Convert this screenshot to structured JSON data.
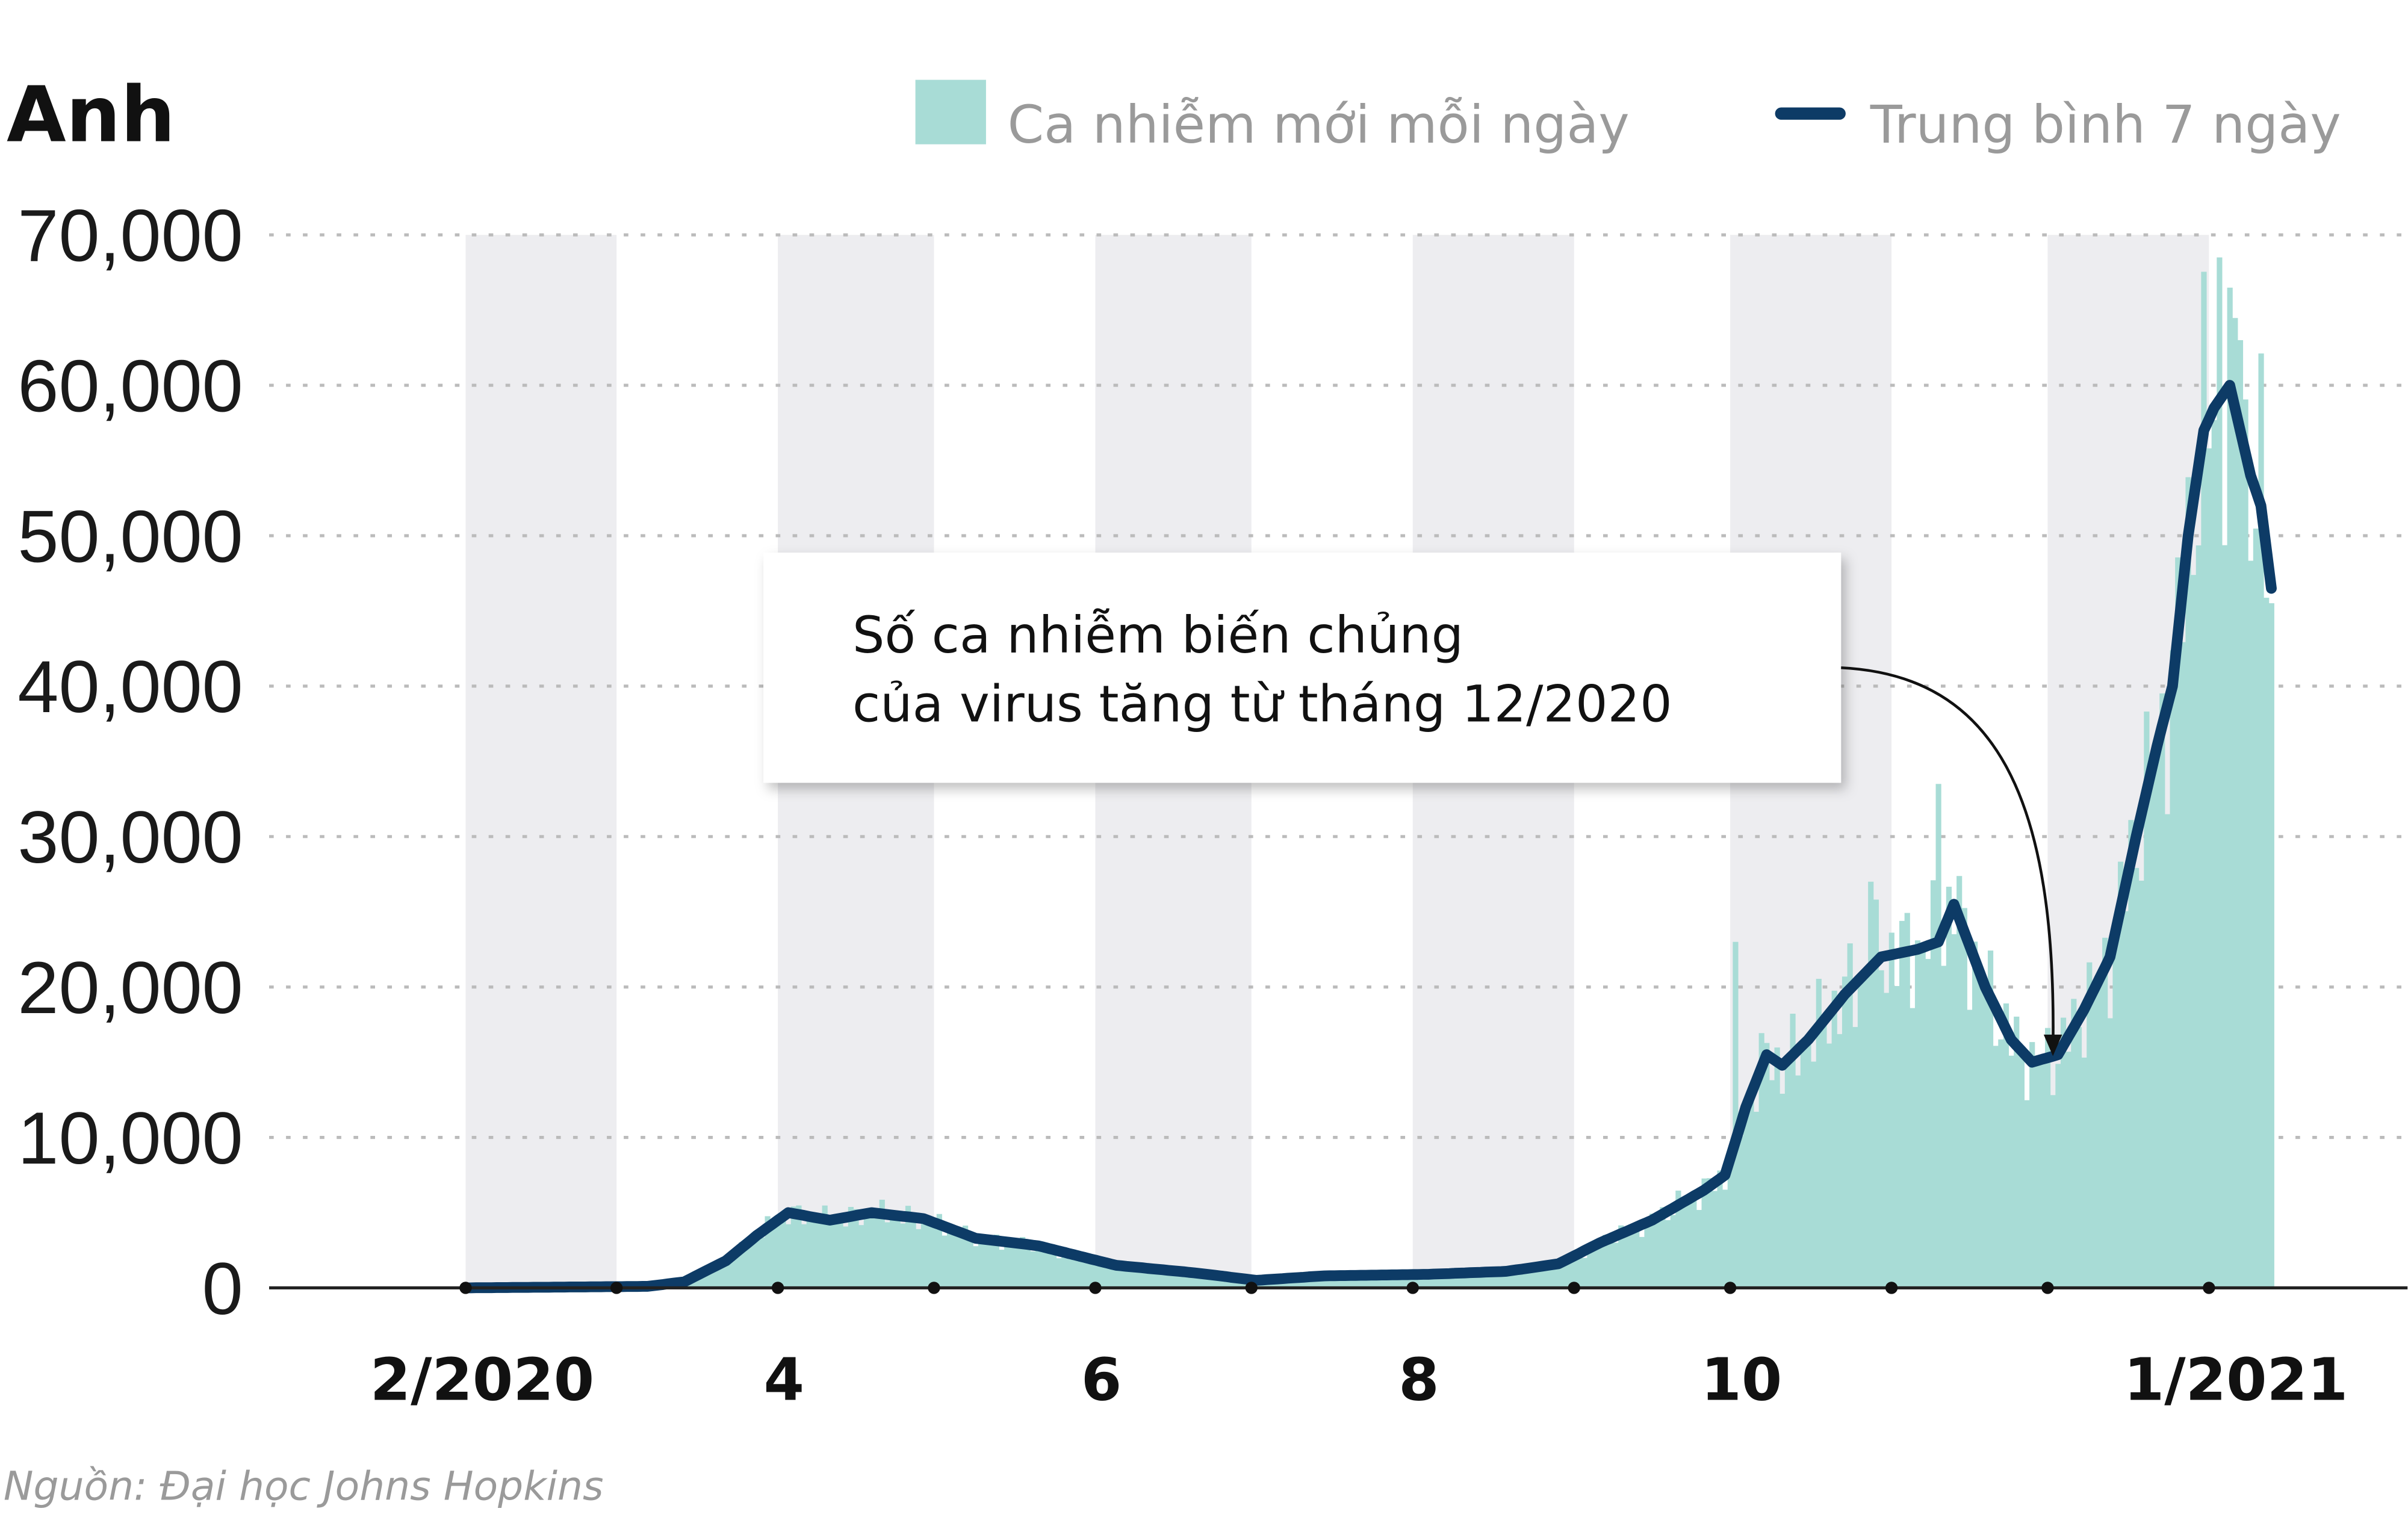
{
  "chart_data": {
    "type": "bar+line",
    "title": "Anh",
    "legend": [
      {
        "label": "Ca nhiễm mới mỗi ngày",
        "color": "#a8dcd6",
        "kind": "bar"
      },
      {
        "label": "Trung bình 7 ngày",
        "color": "#0d3b66",
        "kind": "line"
      }
    ],
    "legend_position": "top-right",
    "x_start": "2020-02-01",
    "x_tick_labels": [
      {
        "label": "2/2020",
        "day": 2
      },
      {
        "label": "4",
        "day": 60
      },
      {
        "label": "6",
        "day": 121
      },
      {
        "label": "8",
        "day": 182
      },
      {
        "label": "10",
        "day": 244
      },
      {
        "label": "1/2021",
        "day": 339
      }
    ],
    "y_ticks": [
      0,
      10000,
      20000,
      30000,
      40000,
      50000,
      60000,
      70000
    ],
    "y_tick_labels": [
      "0",
      "10,000",
      "20,000",
      "30,000",
      "40,000",
      "50,000",
      "60,000",
      "70,000"
    ],
    "ylim": [
      0,
      70000
    ],
    "grid": "horizontal dotted",
    "x_days": 347,
    "seven_day_average": [
      [
        0,
        0
      ],
      [
        35,
        100
      ],
      [
        42,
        400
      ],
      [
        50,
        1800
      ],
      [
        56,
        3500
      ],
      [
        62,
        5000
      ],
      [
        70,
        4500
      ],
      [
        78,
        5000
      ],
      [
        88,
        4600
      ],
      [
        98,
        3300
      ],
      [
        110,
        2800
      ],
      [
        125,
        1500
      ],
      [
        140,
        1000
      ],
      [
        152,
        500
      ],
      [
        165,
        800
      ],
      [
        185,
        900
      ],
      [
        200,
        1100
      ],
      [
        210,
        1600
      ],
      [
        218,
        3000
      ],
      [
        228,
        4500
      ],
      [
        238,
        6500
      ],
      [
        242,
        7500
      ],
      [
        246,
        12000
      ],
      [
        250,
        15500
      ],
      [
        253,
        14800
      ],
      [
        258,
        16500
      ],
      [
        265,
        19500
      ],
      [
        272,
        22000
      ],
      [
        279,
        22500
      ],
      [
        283,
        23000
      ],
      [
        286,
        25500
      ],
      [
        292,
        20000
      ],
      [
        297,
        16500
      ],
      [
        301,
        15000
      ],
      [
        306,
        15500
      ],
      [
        311,
        18500
      ],
      [
        316,
        22000
      ],
      [
        321,
        30000
      ],
      [
        325,
        36000
      ],
      [
        328,
        40000
      ],
      [
        331,
        50000
      ],
      [
        334,
        57000
      ],
      [
        336,
        58500
      ],
      [
        339,
        60000
      ],
      [
        343,
        54000
      ],
      [
        345,
        52000
      ],
      [
        347,
        46500
      ]
    ],
    "daily_spikes": [
      [
        244,
        23000
      ],
      [
        270,
        27000
      ],
      [
        283,
        33500
      ],
      [
        337,
        68500
      ],
      [
        341,
        63000
      ]
    ],
    "annotation": {
      "lines": [
        "Số ca nhiễm biến chủng",
        "của virus tăng từ tháng 12/2020"
      ],
      "points_to_day": 304
    },
    "source": "Nguồn: Đại học Johns Hopkins"
  }
}
